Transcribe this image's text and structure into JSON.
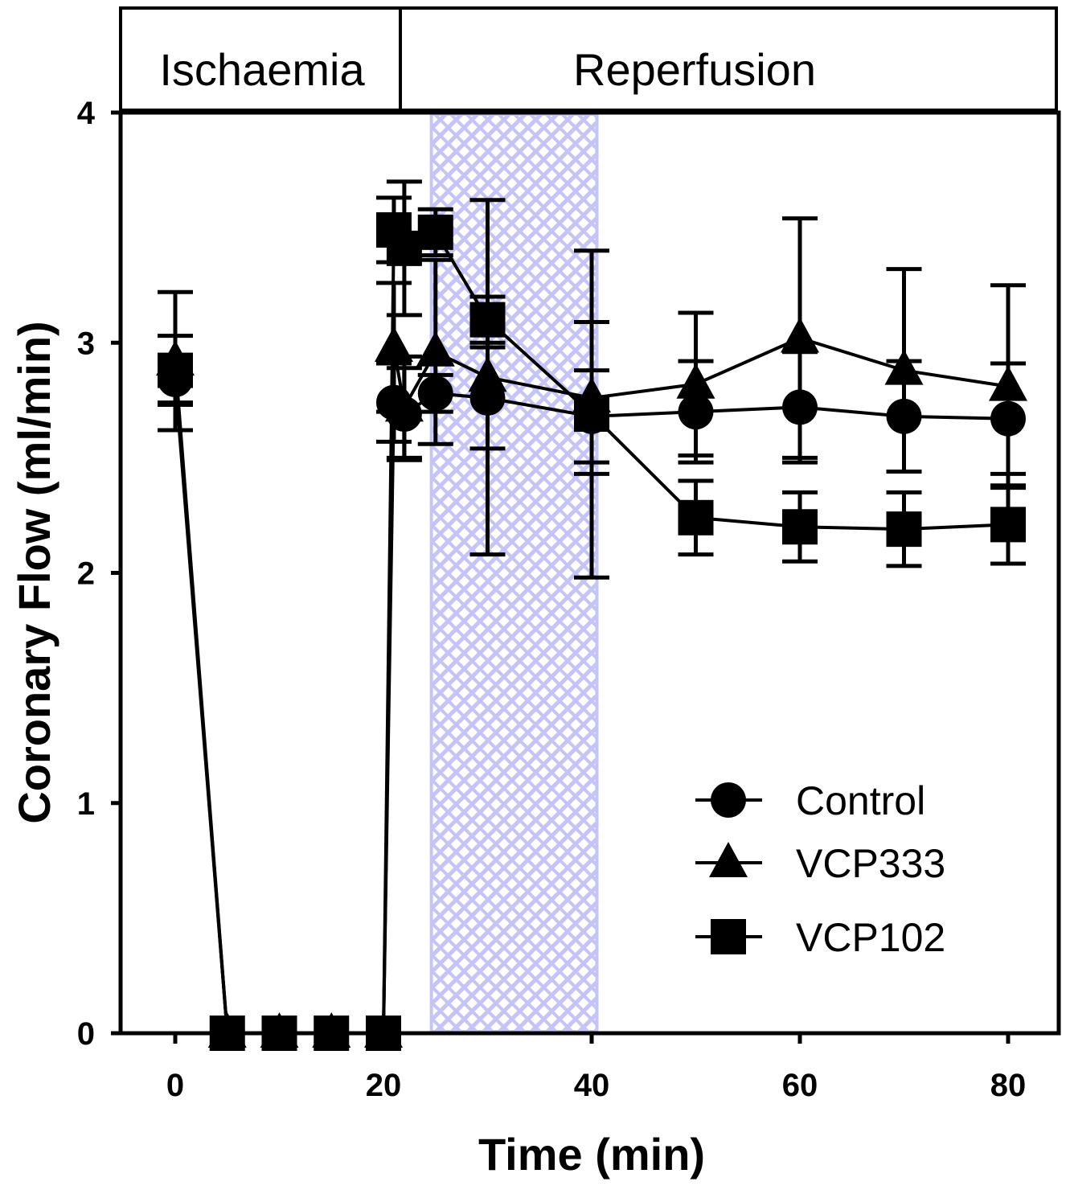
{
  "chart_data": {
    "type": "line",
    "title": "",
    "xlabel": "Time (min)",
    "ylabel": "Coronary Flow (ml/min)",
    "xlim": [
      -5.3,
      84.8
    ],
    "ylim": [
      0,
      4
    ],
    "xticks": [
      0,
      20,
      40,
      60,
      80
    ],
    "yticks": [
      0,
      1,
      2,
      3,
      4
    ],
    "grid": false,
    "legend_position": "bottom-right",
    "phases": [
      {
        "label": "Ischaemia",
        "start": -5.3,
        "end": 21.8
      },
      {
        "label": "Reperfusion",
        "start": 21.8,
        "end": 84.8
      }
    ],
    "shaded_region": {
      "start": 24.6,
      "end": 40.5,
      "color": "#c4c4f8"
    },
    "series": [
      {
        "name": "Control",
        "marker": "circle",
        "x": [
          0,
          5,
          10,
          15,
          20,
          21,
          22,
          25,
          30,
          40,
          50,
          60,
          70,
          80
        ],
        "y": [
          2.84,
          0,
          0,
          0,
          0,
          2.74,
          2.69,
          2.78,
          2.76,
          2.68,
          2.7,
          2.72,
          2.68,
          2.67
        ],
        "error": [
          0.1,
          0,
          0,
          0,
          0,
          0.17,
          0.2,
          0.08,
          0.22,
          0.2,
          0.22,
          0.24,
          0.24,
          0.24
        ]
      },
      {
        "name": "VCP333",
        "marker": "triangle",
        "x": [
          0,
          5,
          10,
          15,
          20,
          21,
          22,
          25,
          30,
          40,
          50,
          60,
          70,
          80
        ],
        "y": [
          2.92,
          0,
          0,
          0,
          0,
          2.98,
          2.72,
          2.96,
          2.85,
          2.76,
          2.82,
          3.02,
          2.88,
          2.81
        ],
        "error": [
          0.3,
          0,
          0,
          0,
          0,
          0.28,
          0.22,
          0.4,
          0.77,
          0.33,
          0.31,
          0.52,
          0.44,
          0.44
        ]
      },
      {
        "name": "VCP102",
        "marker": "square",
        "x": [
          0,
          5,
          10,
          15,
          20,
          21,
          22,
          25,
          30,
          40,
          50,
          60,
          70,
          80
        ],
        "y": [
          2.88,
          0,
          0,
          0,
          0,
          3.49,
          3.41,
          3.48,
          3.1,
          2.69,
          2.24,
          2.2,
          2.19,
          2.21
        ],
        "error": [
          0.15,
          0,
          0,
          0,
          0,
          0.14,
          0.29,
          0.1,
          0.1,
          0.71,
          0.16,
          0.15,
          0.16,
          0.17
        ]
      }
    ]
  }
}
